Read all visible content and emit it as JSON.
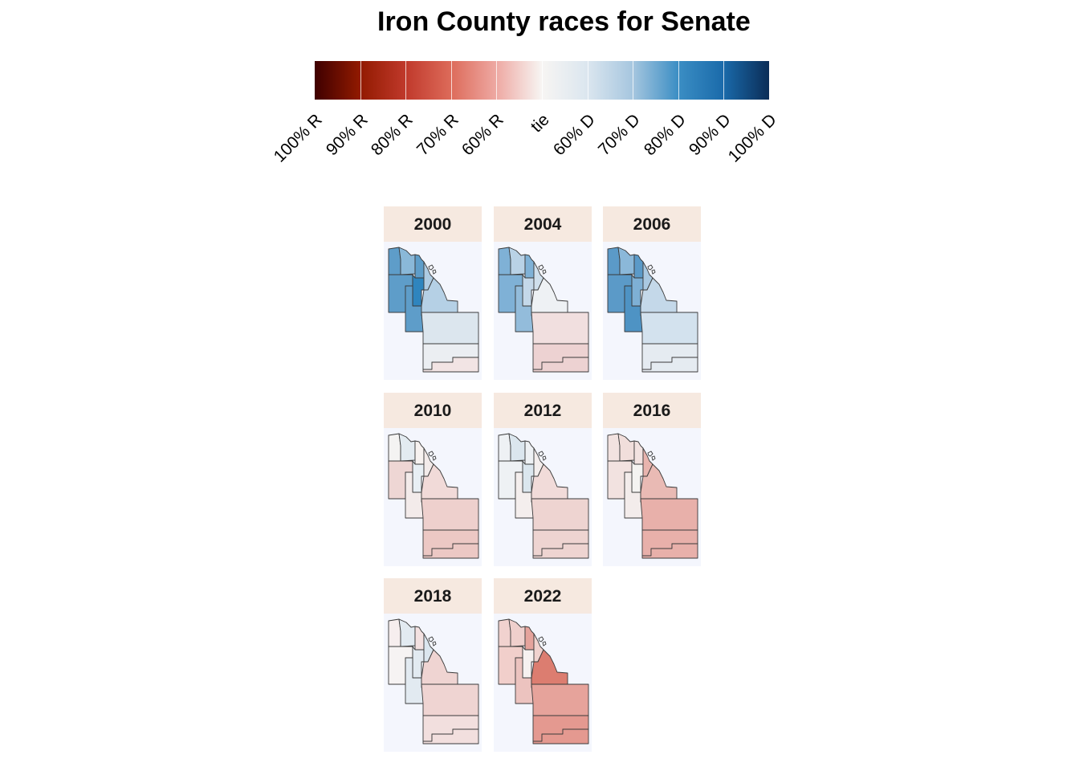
{
  "title": "Iron County races for Senate",
  "legend": {
    "ticks": [
      "100% R",
      "90% R",
      "80% R",
      "70% R",
      "60% R",
      "tie",
      "60% D",
      "70% D",
      "80% D",
      "90% D",
      "100% D"
    ]
  },
  "colors": {
    "strip_bg": "#f6e9e0",
    "panel_bg": "#f4f6fd",
    "border": "#3a3a3a"
  },
  "panels": [
    {
      "year": "2000",
      "fills": [
        "#5e9dc9",
        "#8ab8d8",
        "#5e9dc9",
        "#5e9dc9",
        "#2f85be",
        "#5e9dc9",
        "#aecbe2",
        "#b5d0e5",
        "#dce6ee",
        "#ebeef2",
        "#f2e4e4"
      ]
    },
    {
      "year": "2004",
      "fills": [
        "#7fb1d6",
        "#b9d2e6",
        "#7fb1d6",
        "#7fb1d6",
        "#c4d8e9",
        "#93bcdb",
        "#cfdfec",
        "#eef1f4",
        "#f1dfdf",
        "#edd2d2",
        "#edd2d2"
      ]
    },
    {
      "year": "2006",
      "fills": [
        "#5b9ac8",
        "#8bb8d9",
        "#5b9ac8",
        "#5b9ac8",
        "#7eb0d5",
        "#4e93c4",
        "#aac9e1",
        "#c4d8e9",
        "#d3e2ee",
        "#e5ebf1",
        "#e5ebf1"
      ]
    },
    {
      "year": "2010",
      "fills": [
        "#f4f3f2",
        "#e3ebf1",
        "#f7f2f0",
        "#eed6d4",
        "#e8eff4",
        "#f3ebea",
        "#f3ebea",
        "#f1dad8",
        "#eed0cd",
        "#ecc8c4",
        "#ecc8c4"
      ]
    },
    {
      "year": "2012",
      "fills": [
        "#eef1f4",
        "#dbe6ee",
        "#eef1f4",
        "#eef1f4",
        "#dbe6ee",
        "#f4eeed",
        "#f4eeed",
        "#f1dbd9",
        "#eed4d1",
        "#eed4d1",
        "#eed4d1"
      ]
    },
    {
      "year": "2016",
      "fills": [
        "#f2e2e0",
        "#f1dedb",
        "#f2e2e0",
        "#f2e2e0",
        "#f4f3f1",
        "#f3eceb",
        "#e8b4ae",
        "#e9bab4",
        "#e8b0aa",
        "#e8b0aa",
        "#e8b0aa"
      ]
    },
    {
      "year": "2018",
      "fills": [
        "#f6eeee",
        "#e2eaf1",
        "#f3e1e1",
        "#f6f3f3",
        "#e2eaf1",
        "#e2eaf1",
        "#dbe6ef",
        "#efd4d2",
        "#efd4d2",
        "#f2dfde",
        "#f2dfde"
      ]
    },
    {
      "year": "2022",
      "fills": [
        "#f1d2cf",
        "#efcfcc",
        "#e5a39c",
        "#f1cfcb",
        "#f6f1f0",
        "#ecc3bf",
        "#f0d2ce",
        "#dc7d70",
        "#e6a39b",
        "#e49990",
        "#e49990"
      ]
    }
  ]
}
